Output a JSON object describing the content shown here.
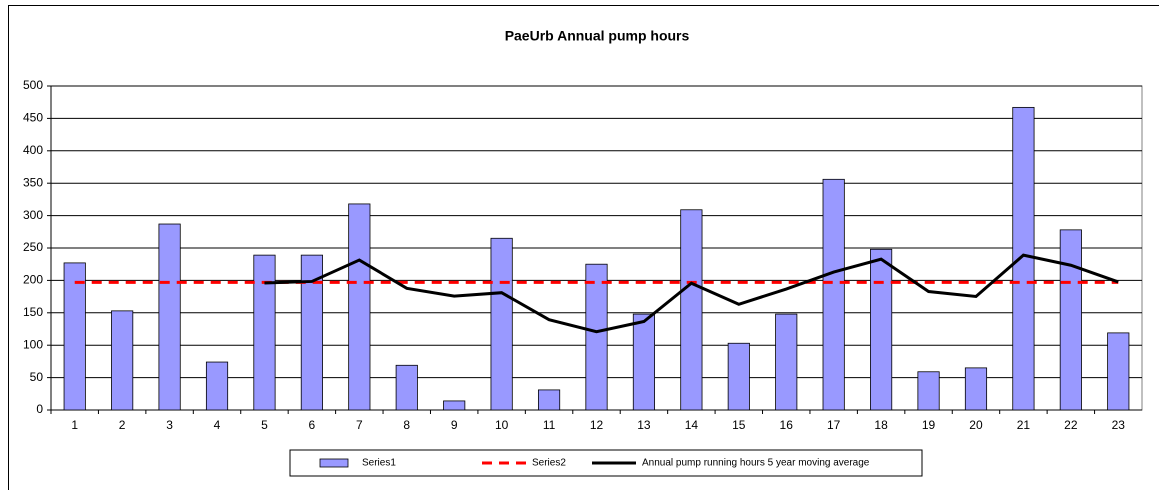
{
  "chart_data": {
    "type": "bar",
    "title": "PaeUrb Annual pump hours",
    "categories": [
      1,
      2,
      3,
      4,
      5,
      6,
      7,
      8,
      9,
      10,
      11,
      12,
      13,
      14,
      15,
      16,
      17,
      18,
      19,
      20,
      21,
      22,
      23
    ],
    "series": [
      {
        "name": "Series1",
        "type": "bar",
        "color": "#9999ff",
        "values": [
          227,
          153,
          287,
          74,
          239,
          239,
          318,
          69,
          14,
          265,
          31,
          225,
          148,
          309,
          103,
          148,
          356,
          248,
          59,
          65,
          467,
          278,
          119
        ]
      },
      {
        "name": "Series2",
        "type": "line",
        "dashed": true,
        "color": "#ff0000",
        "values": [
          197,
          197,
          197,
          197,
          197,
          197,
          197,
          197,
          197,
          197,
          197,
          197,
          197,
          197,
          197,
          197,
          197,
          197,
          197,
          197,
          197,
          197,
          197
        ]
      },
      {
        "name": "Annual pump running hours 5 year moving average",
        "type": "line",
        "dashed": false,
        "color": "#000000",
        "values": [
          null,
          null,
          null,
          null,
          196,
          198.4,
          231.4,
          187.8,
          175.8,
          181,
          139.4,
          120.8,
          136.6,
          195.6,
          163.2,
          186.6,
          212.8,
          232.8,
          182.8,
          175.2,
          239,
          223.4,
          197.6
        ]
      }
    ],
    "ylim": [
      0,
      500
    ],
    "yticks": [
      0,
      50,
      100,
      150,
      200,
      250,
      300,
      350,
      400,
      450,
      500
    ],
    "grid": true,
    "legend": "bottom"
  }
}
